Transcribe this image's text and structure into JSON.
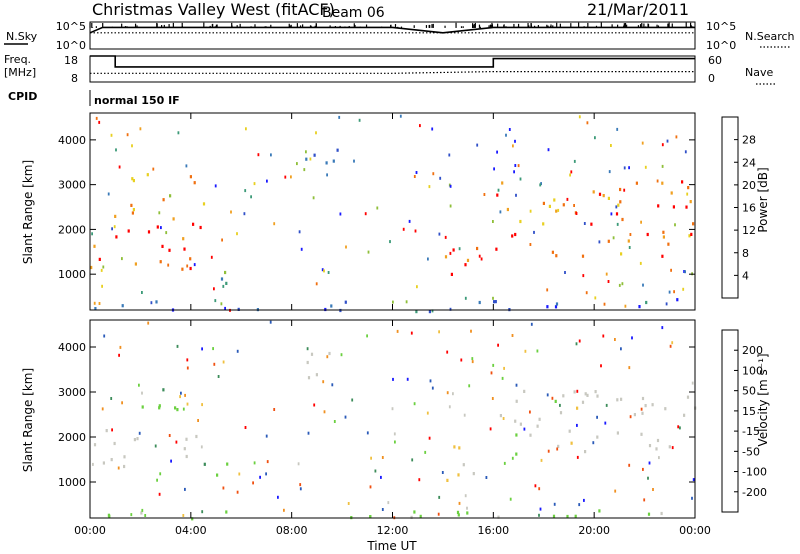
{
  "header": {
    "station": "Christmas Valley West (fitACF)",
    "beam": "Beam 06",
    "date": "21/Mar/2011"
  },
  "noise_panel": {
    "left_label": "N.Sky",
    "right_label": "N.Search",
    "left_ticks": [
      "10^5",
      "10^0"
    ],
    "right_ticks": [
      "10^5",
      "10^0"
    ]
  },
  "freq_panel": {
    "left_label_1": "Freq.",
    "left_label_2": "[MHz]",
    "right_label": "Nave",
    "left_ticks": [
      "18",
      "8"
    ],
    "right_ticks": [
      "60",
      "0"
    ]
  },
  "cpid": {
    "label": "CPID",
    "program": "normal 150 IF"
  },
  "chart_data": [
    {
      "type": "line",
      "panel": "noise",
      "series": [
        {
          "name": "N.Sky",
          "style": "solid",
          "x": [
            "00:00",
            "00:30",
            "01:00",
            "04:00",
            "08:00",
            "12:00",
            "14:00",
            "16:00",
            "20:00",
            "24:00"
          ],
          "y": [
            3,
            4,
            4,
            4,
            4,
            4,
            3,
            4,
            4,
            4
          ]
        },
        {
          "name": "N.Search",
          "style": "dotted",
          "x": [
            "00:00",
            "04:00",
            "08:00",
            "12:00",
            "16:00",
            "20:00",
            "24:00"
          ],
          "y": [
            3,
            3,
            3,
            3,
            3,
            3,
            3
          ]
        }
      ],
      "y_scale": "log",
      "ylim_labels": [
        "10^0",
        "10^5"
      ]
    },
    {
      "type": "line",
      "panel": "frequency",
      "series": [
        {
          "name": "Freq.",
          "style": "solid",
          "x": [
            "00:00",
            "01:00",
            "01:00",
            "16:00",
            "16:00",
            "24:00"
          ],
          "y": [
            18,
            18,
            13.8,
            13.8,
            17,
            17
          ]
        },
        {
          "name": "Nave",
          "style": "dotted",
          "x": [
            "00:00",
            "04:00",
            "08:00",
            "12:00",
            "16:00",
            "20:00",
            "24:00"
          ],
          "y": [
            20,
            20,
            20,
            20,
            24,
            24,
            24
          ]
        }
      ],
      "ylim": [
        8,
        18
      ],
      "ylim_right": [
        0,
        60
      ]
    },
    {
      "type": "heatmap",
      "panel": "power",
      "xlabel": "",
      "ylabel": "Slant Range [km]",
      "yticks": [
        "1000",
        "2000",
        "3000",
        "4000"
      ],
      "ylim": [
        200,
        4600
      ],
      "xlim": [
        "00:00",
        "24:00"
      ],
      "colorbar": {
        "label": "Power [dB]",
        "ticks": [
          "4",
          "8",
          "12",
          "16",
          "20",
          "24",
          "28"
        ],
        "range": [
          0,
          32
        ],
        "colors": [
          "#1a1aff",
          "#3050c8",
          "#3a7ab8",
          "#3c9a78",
          "#8fbf3a",
          "#e8d020",
          "#f0a020",
          "#f07010",
          "#ff0000"
        ]
      },
      "regions": [
        {
          "t0": 0.0,
          "t1": 4.5,
          "r0": 1000,
          "r1": 2400,
          "value": 28
        },
        {
          "t0": 1.5,
          "t1": 4.5,
          "r0": 2400,
          "r1": 3400,
          "value": 22
        },
        {
          "t0": 4.5,
          "t1": 5.5,
          "r0": 700,
          "r1": 1500,
          "value": 12
        },
        {
          "t0": 8.5,
          "t1": 10.0,
          "r0": 3200,
          "r1": 3900,
          "value": 8
        },
        {
          "t0": 14.0,
          "t1": 15.5,
          "r0": 900,
          "r1": 2000,
          "value": 28
        },
        {
          "t0": 16.0,
          "t1": 24.0,
          "r0": 1400,
          "r1": 3100,
          "value": 26
        },
        {
          "t0": 0.0,
          "t1": 24.0,
          "r0": 200,
          "r1": 500,
          "value": 6
        }
      ]
    },
    {
      "type": "heatmap",
      "panel": "velocity",
      "xlabel": "Time UT",
      "ylabel": "Slant Range [km]",
      "yticks": [
        "1000",
        "2000",
        "3000",
        "4000"
      ],
      "ylim": [
        200,
        4600
      ],
      "xticks": [
        "00:00",
        "04:00",
        "08:00",
        "12:00",
        "16:00",
        "20:00",
        "00:00"
      ],
      "colorbar": {
        "label": "Velocity [m s⁻¹]",
        "ticks": [
          "200",
          "100",
          "50",
          "15",
          "-15",
          "-50",
          "-100",
          "-200"
        ],
        "range": [
          -250,
          250
        ],
        "colors": [
          "#1a1aff",
          "#2a5ab8",
          "#3c8c5a",
          "#6bd040",
          "#c8c8c0",
          "#f0c040",
          "#f09020",
          "#f05010",
          "#ff0000"
        ]
      },
      "regions": [
        {
          "t0": 0.0,
          "t1": 4.5,
          "r0": 1300,
          "r1": 2300,
          "value": 0
        },
        {
          "t0": 1.5,
          "t1": 4.0,
          "r0": 2600,
          "r1": 3200,
          "value": -60
        },
        {
          "t0": 4.5,
          "t1": 5.5,
          "r0": 700,
          "r1": 1600,
          "value": -80
        },
        {
          "t0": 8.5,
          "t1": 10.0,
          "r0": 3200,
          "r1": 3900,
          "value": 0
        },
        {
          "t0": 14.0,
          "t1": 15.5,
          "r0": 800,
          "r1": 2000,
          "value": 40
        },
        {
          "t0": 16.0,
          "t1": 24.0,
          "r0": 1600,
          "r1": 3100,
          "value": 0
        },
        {
          "t0": 0.0,
          "t1": 24.0,
          "r0": 200,
          "r1": 450,
          "value": -50
        }
      ]
    }
  ]
}
